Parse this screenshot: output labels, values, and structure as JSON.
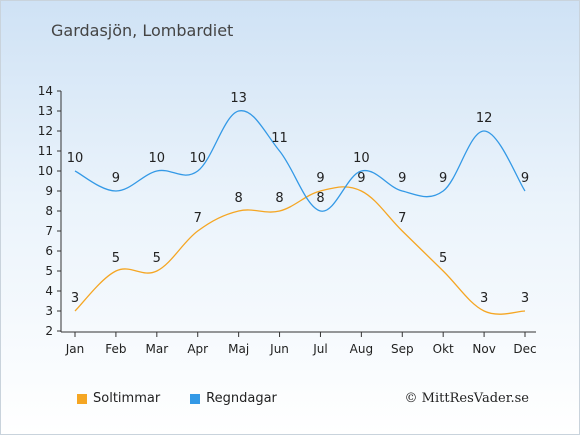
{
  "title": "Gardasjön, Lombardiet",
  "credit": "© MittResVader.se",
  "colors": {
    "sun": "#f5a623",
    "rain": "#3399e6",
    "axis": "#333333"
  },
  "chart_data": {
    "type": "line",
    "title": "Gardasjön, Lombardiet",
    "categories": [
      "Jan",
      "Feb",
      "Mar",
      "Apr",
      "Maj",
      "Jun",
      "Jul",
      "Aug",
      "Sep",
      "Okt",
      "Nov",
      "Dec"
    ],
    "ylim": [
      2,
      14
    ],
    "yticks": [
      2,
      3,
      4,
      5,
      6,
      7,
      8,
      9,
      10,
      11,
      12,
      13,
      14
    ],
    "grid": false,
    "legend": "bottom-left",
    "series": [
      {
        "name": "Soltimmar",
        "color": "#f5a623",
        "values": [
          3,
          5,
          5,
          7,
          8,
          8,
          9,
          9,
          7,
          5,
          3,
          3
        ]
      },
      {
        "name": "Regndagar",
        "color": "#3399e6",
        "values": [
          10,
          9,
          10,
          10,
          13,
          11,
          8,
          10,
          9,
          9,
          12,
          9
        ]
      }
    ]
  }
}
